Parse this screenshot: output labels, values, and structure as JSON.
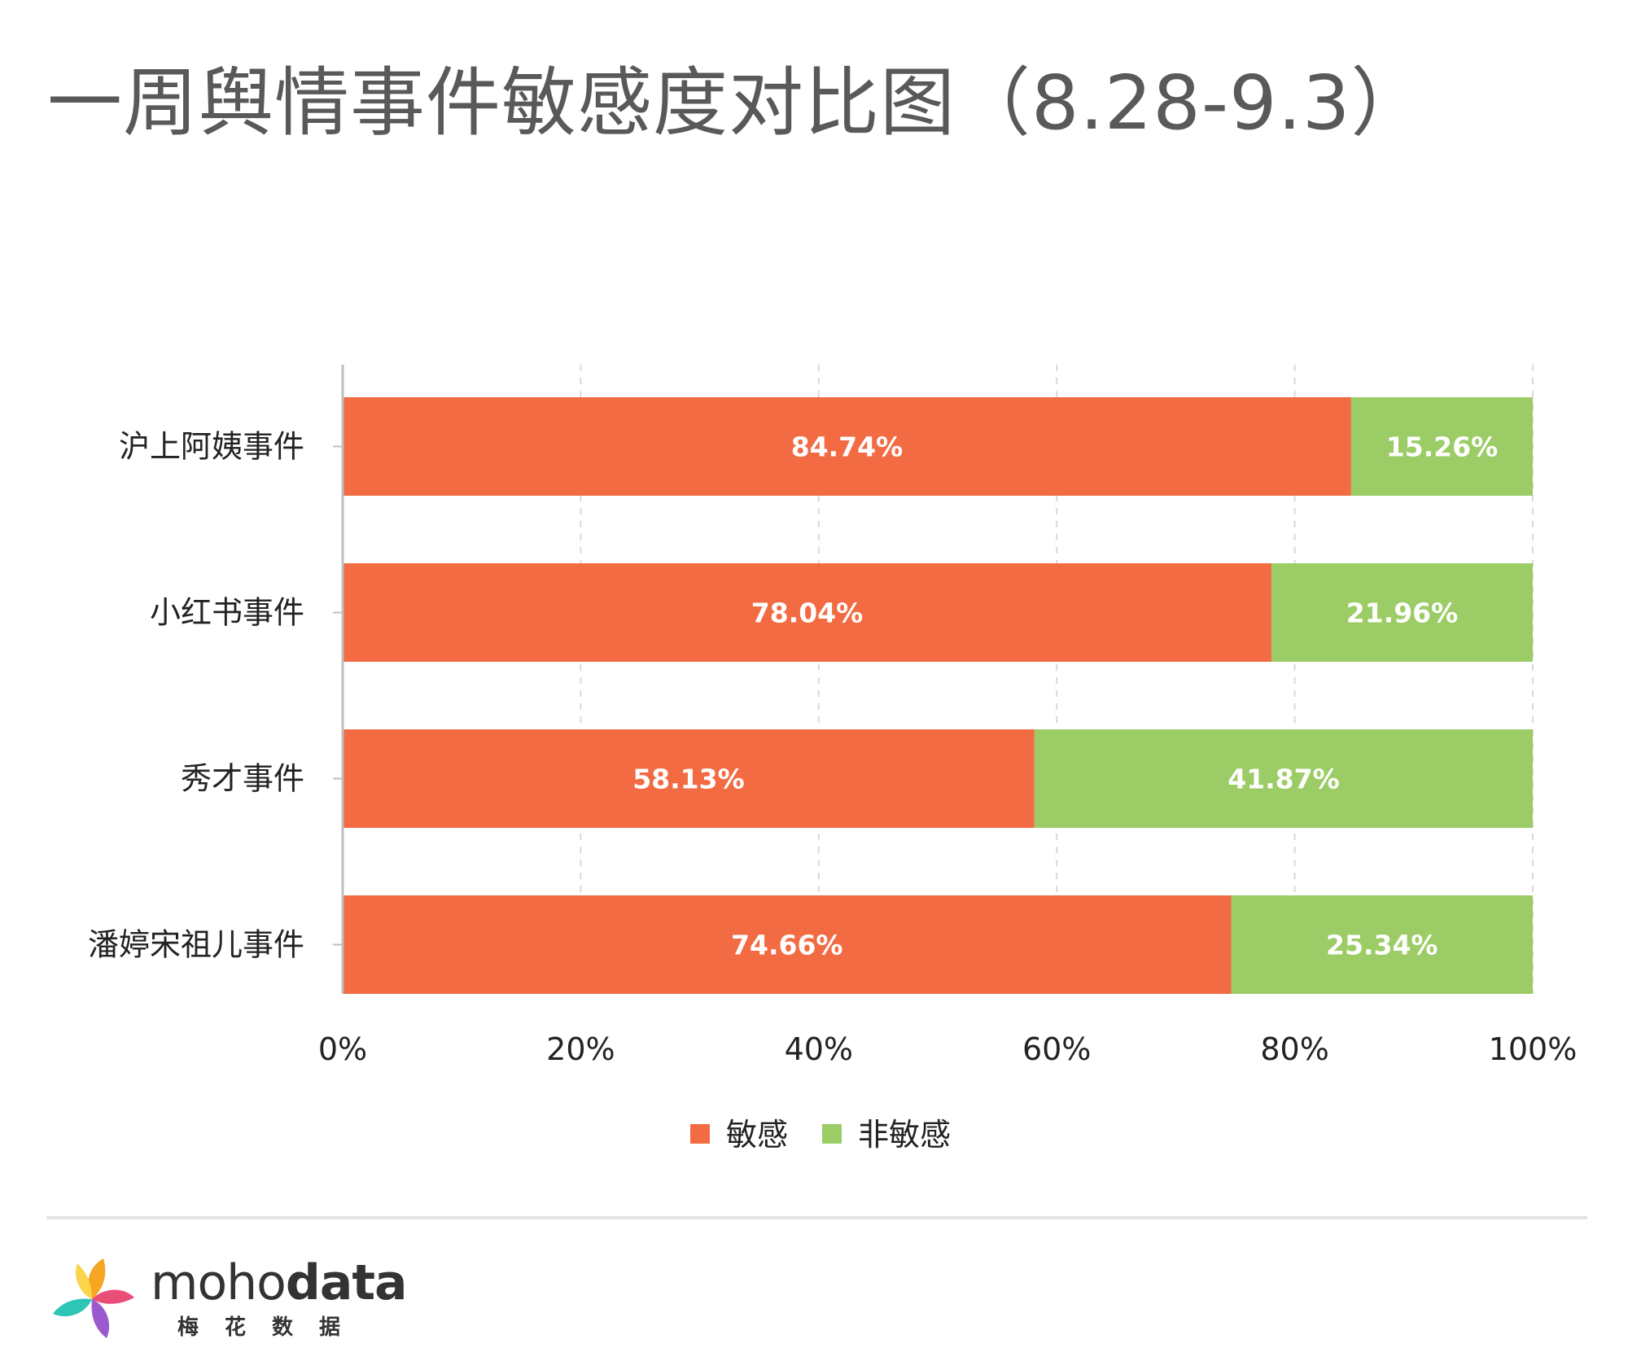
{
  "title": "一周舆情事件敏感度对比图（8.28-9.3）",
  "brand": {
    "name_part1": "moho",
    "name_part2": "data",
    "sub": "梅花数据"
  },
  "colors": {
    "sensitive": "#f26b43",
    "nonsensitive": "#9ccc65"
  },
  "chart_data": {
    "type": "bar",
    "orientation": "horizontal",
    "stacked": true,
    "categories": [
      "沪上阿姨事件",
      "小红书事件",
      "秀才事件",
      "潘婷宋祖儿事件"
    ],
    "series": [
      {
        "name": "敏感",
        "values": [
          84.74,
          78.04,
          58.13,
          74.66
        ],
        "labels": [
          "84.74%",
          "78.04%",
          "58.13%",
          "74.66%"
        ]
      },
      {
        "name": "非敏感",
        "values": [
          15.26,
          21.96,
          41.87,
          25.34
        ],
        "labels": [
          "15.26%",
          "21.96%",
          "41.87%",
          "25.34%"
        ]
      }
    ],
    "xlim": [
      0,
      100
    ],
    "xticks": [
      "0%",
      "20%",
      "40%",
      "60%",
      "80%",
      "100%"
    ],
    "grid": "vertical dashed",
    "legend_position": "bottom"
  }
}
